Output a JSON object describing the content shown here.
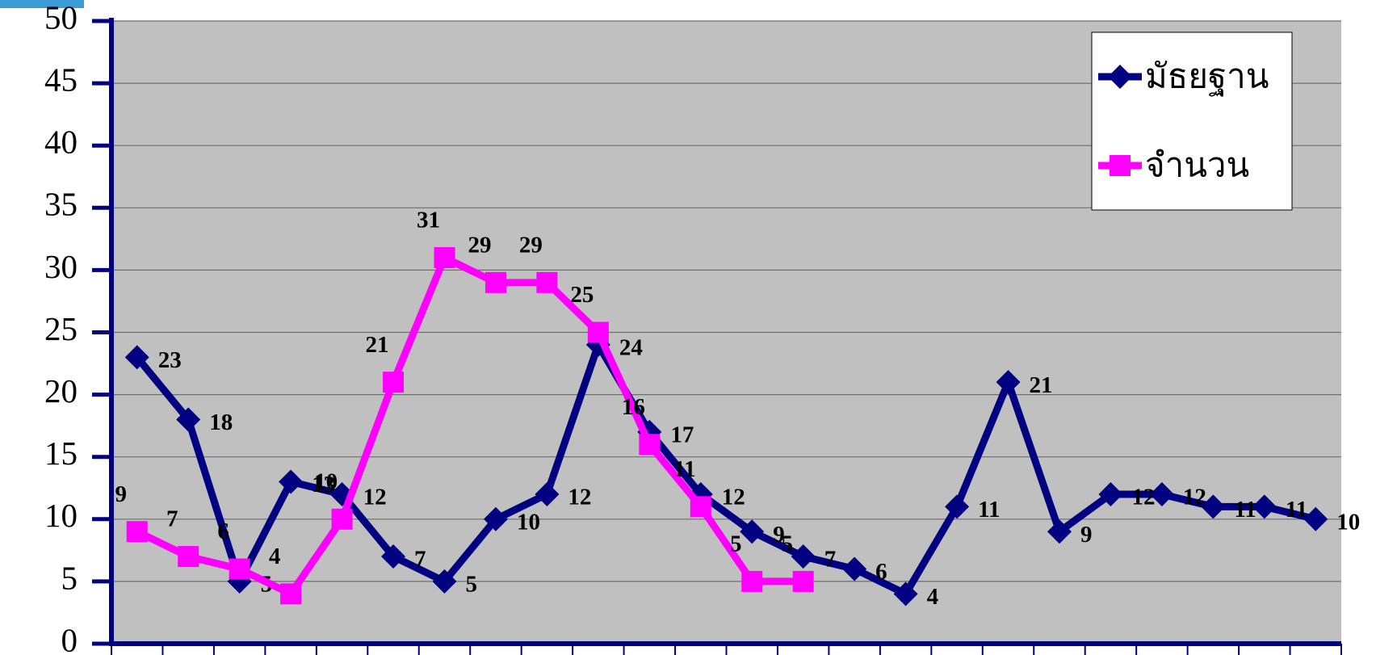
{
  "chart_data": {
    "type": "line",
    "categories": [
      null,
      null,
      null,
      null,
      null,
      null,
      null,
      null,
      null,
      null,
      null,
      null,
      null,
      null,
      null,
      null,
      null,
      null,
      null,
      null,
      null,
      null,
      null,
      null
    ],
    "series": [
      {
        "name": "มัธยฐาน",
        "color": "#000080",
        "marker": "diamond",
        "values": [
          23,
          18,
          5,
          13,
          12,
          7,
          5,
          10,
          12,
          24,
          17,
          12,
          9,
          7,
          6,
          4,
          11,
          21,
          9,
          12,
          12,
          11,
          11,
          10
        ]
      },
      {
        "name": "จำนวน",
        "color": "#ff00ff",
        "marker": "square",
        "values": [
          9,
          7,
          6,
          4,
          10,
          21,
          31,
          29,
          29,
          25,
          16,
          11,
          5,
          5,
          null,
          null,
          null,
          null,
          null,
          null,
          null,
          null,
          null,
          null
        ]
      }
    ],
    "ylim": [
      0,
      50
    ],
    "yticks": [
      0,
      5,
      10,
      15,
      20,
      25,
      30,
      35,
      40,
      45,
      50
    ],
    "grid": true,
    "legend": "top-right"
  }
}
